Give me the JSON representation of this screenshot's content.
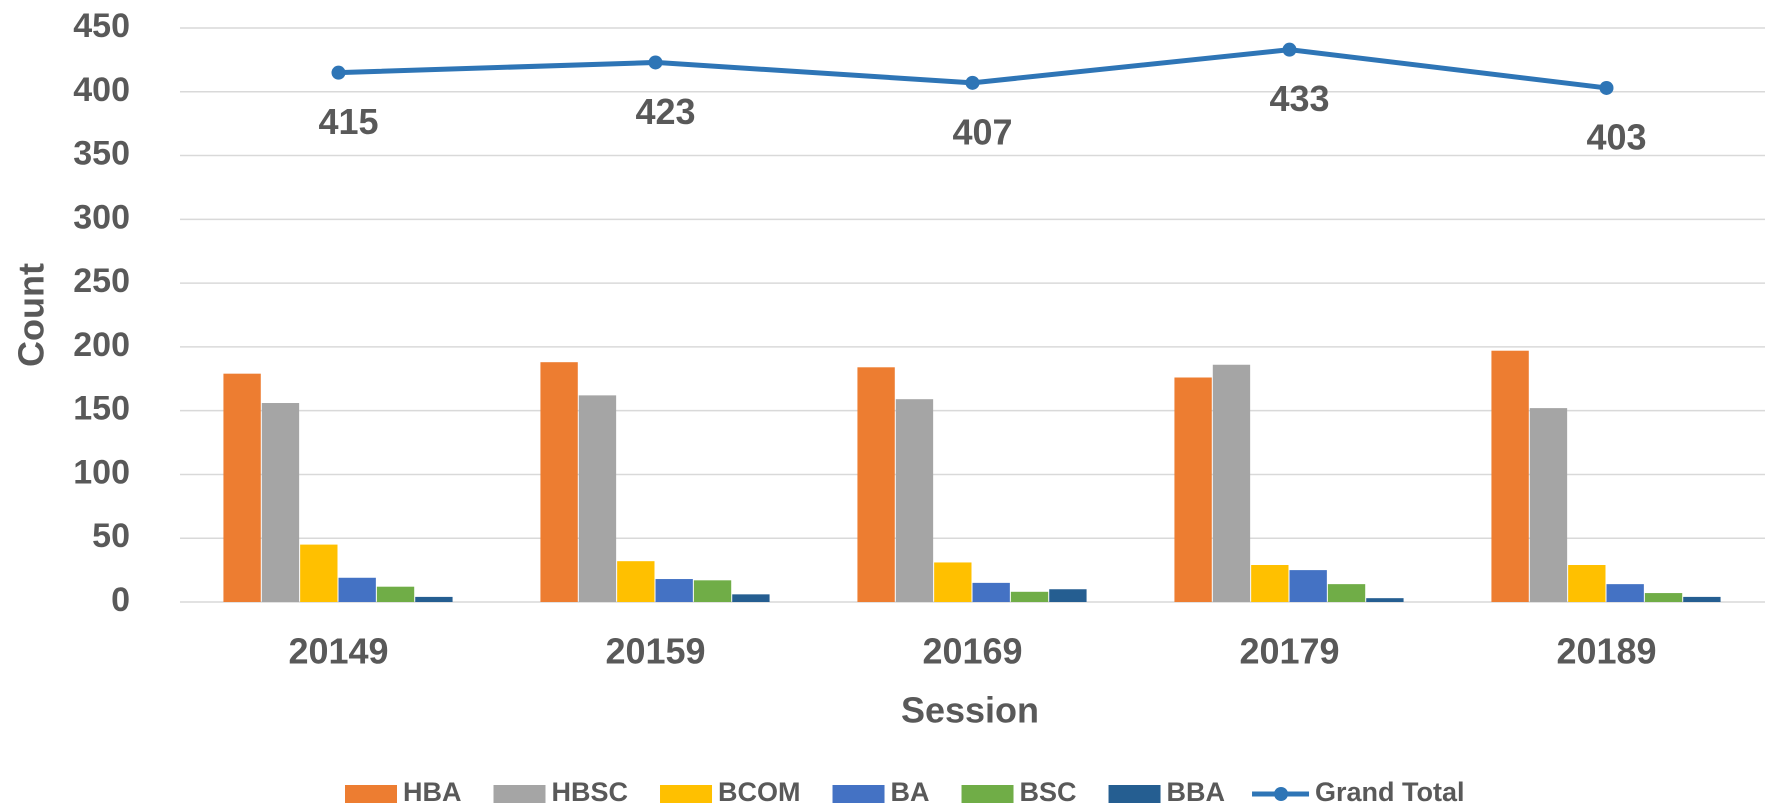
{
  "chart_data": {
    "type": "bar",
    "x_label": "Session",
    "y_label": "Count",
    "categories": [
      "20149",
      "20159",
      "20169",
      "20179",
      "20189"
    ],
    "series": [
      {
        "name": "HBA",
        "color": "#ed7d31",
        "values": [
          179,
          188,
          184,
          176,
          197
        ]
      },
      {
        "name": "HBSC",
        "color": "#a5a5a5",
        "values": [
          156,
          162,
          159,
          186,
          152
        ]
      },
      {
        "name": "BCOM",
        "color": "#ffc000",
        "values": [
          45,
          32,
          31,
          29,
          29
        ]
      },
      {
        "name": "BA",
        "color": "#4472c4",
        "values": [
          19,
          18,
          15,
          25,
          14
        ]
      },
      {
        "name": "BSC",
        "color": "#70ad47",
        "values": [
          12,
          17,
          8,
          14,
          7
        ]
      },
      {
        "name": "BBA",
        "color": "#255e91",
        "values": [
          4,
          6,
          10,
          3,
          4
        ]
      },
      {
        "name": "Grand Total",
        "color": "#2e75b6",
        "type": "line",
        "values": [
          415,
          423,
          407,
          433,
          403
        ],
        "data_labels": true
      }
    ],
    "ylim": [
      0,
      450
    ],
    "yticks": [
      0,
      50,
      100,
      150,
      200,
      250,
      300,
      350,
      400,
      450
    ],
    "grid": true,
    "legend": "bottom"
  }
}
